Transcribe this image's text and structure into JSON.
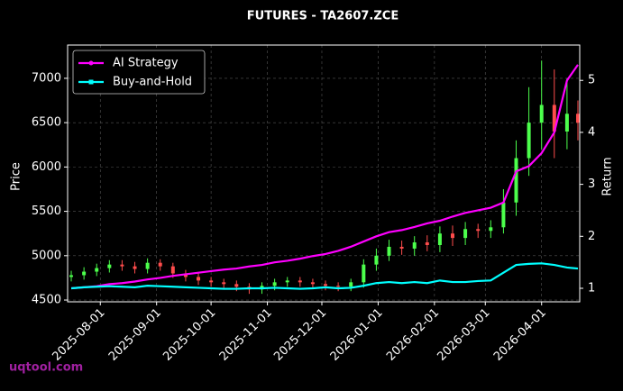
{
  "chart_data": {
    "type": "candlestick",
    "title": "FUTURES - TA2607.ZCE",
    "y_label": "Price",
    "y2_label": "Return",
    "watermark": "uqtool.com",
    "x": [
      "2025-07-16",
      "2025-07-23",
      "2025-07-30",
      "2025-08-06",
      "2025-08-13",
      "2025-08-20",
      "2025-08-27",
      "2025-09-03",
      "2025-09-10",
      "2025-09-17",
      "2025-09-24",
      "2025-10-01",
      "2025-10-08",
      "2025-10-15",
      "2025-10-22",
      "2025-10-29",
      "2025-11-05",
      "2025-11-12",
      "2025-11-19",
      "2025-11-26",
      "2025-12-03",
      "2025-12-10",
      "2025-12-17",
      "2025-12-24",
      "2025-12-31",
      "2026-01-07",
      "2026-01-14",
      "2026-01-21",
      "2026-01-28",
      "2026-02-04",
      "2026-02-11",
      "2026-02-18",
      "2026-02-25",
      "2026-03-04",
      "2026-03-11",
      "2026-03-18",
      "2026-03-25",
      "2026-04-01",
      "2026-04-08",
      "2026-04-15",
      "2026-04-21"
    ],
    "open": [
      4760,
      4780,
      4820,
      4860,
      4900,
      4880,
      4850,
      4920,
      4880,
      4800,
      4760,
      4720,
      4700,
      4680,
      4650,
      4620,
      4660,
      4700,
      4720,
      4700,
      4680,
      4660,
      4650,
      4700,
      4900,
      5000,
      5100,
      5080,
      5150,
      5120,
      5250,
      5200,
      5300,
      5280,
      5320,
      5600,
      6100,
      6500,
      6700,
      6400,
      6600
    ],
    "high": [
      4830,
      4870,
      4910,
      4950,
      4950,
      4930,
      4970,
      4960,
      4920,
      4840,
      4800,
      4760,
      4740,
      4720,
      4690,
      4700,
      4740,
      4760,
      4760,
      4740,
      4720,
      4700,
      4740,
      4960,
      5080,
      5180,
      5170,
      5220,
      5230,
      5330,
      5340,
      5380,
      5360,
      5400,
      5750,
      6300,
      6900,
      7200,
      7100,
      7000,
      6750
    ],
    "low": [
      4710,
      4730,
      4770,
      4810,
      4830,
      4800,
      4800,
      4830,
      4750,
      4710,
      4670,
      4650,
      4630,
      4600,
      4570,
      4570,
      4610,
      4650,
      4650,
      4630,
      4610,
      4600,
      4600,
      4640,
      4830,
      4940,
      5010,
      5000,
      5050,
      5040,
      5110,
      5120,
      5200,
      5200,
      5250,
      5450,
      5900,
      6200,
      6100,
      6200,
      6300
    ],
    "close": [
      4780,
      4820,
      4860,
      4900,
      4880,
      4850,
      4920,
      4880,
      4800,
      4760,
      4720,
      4700,
      4680,
      4650,
      4620,
      4660,
      4700,
      4720,
      4700,
      4680,
      4660,
      4650,
      4700,
      4900,
      5000,
      5100,
      5080,
      5150,
      5120,
      5250,
      5200,
      5300,
      5280,
      5320,
      5600,
      6100,
      6500,
      6700,
      6400,
      6600,
      6500
    ],
    "up_color": "#4cff4c",
    "down_color": "#ff4c4c",
    "series": [
      {
        "name": "AI Strategy",
        "color": "#ff00ff",
        "axis": "y2",
        "values": [
          1.0,
          1.02,
          1.04,
          1.08,
          1.1,
          1.13,
          1.17,
          1.2,
          1.24,
          1.27,
          1.3,
          1.33,
          1.36,
          1.38,
          1.42,
          1.45,
          1.5,
          1.53,
          1.57,
          1.62,
          1.66,
          1.72,
          1.8,
          1.9,
          2.0,
          2.08,
          2.12,
          2.18,
          2.25,
          2.3,
          2.38,
          2.45,
          2.5,
          2.55,
          2.65,
          3.25,
          3.35,
          3.6,
          4.0,
          5.0,
          5.3
        ]
      },
      {
        "name": "Buy-and-Hold",
        "color": "#00ffff",
        "axis": "y2",
        "values": [
          1.0,
          1.02,
          1.03,
          1.04,
          1.03,
          1.02,
          1.05,
          1.04,
          1.03,
          1.02,
          1.01,
          1.0,
          0.99,
          0.99,
          1.0,
          1.0,
          1.01,
          1.0,
          0.99,
          1.0,
          1.02,
          1.0,
          1.01,
          1.05,
          1.1,
          1.12,
          1.1,
          1.12,
          1.1,
          1.15,
          1.12,
          1.12,
          1.14,
          1.15,
          1.3,
          1.45,
          1.47,
          1.48,
          1.45,
          1.4,
          1.38
        ]
      }
    ],
    "xlim": [
      "2025-07-14",
      "2026-04-22"
    ],
    "xticks": [
      "2025-08-01",
      "2025-09-01",
      "2025-10-01",
      "2025-11-01",
      "2025-12-01",
      "2026-01-01",
      "2026-02-01",
      "2026-03-01",
      "2026-04-01"
    ],
    "ylim": [
      4480,
      7375
    ],
    "yticks": [
      4500,
      5000,
      5500,
      6000,
      6500,
      7000
    ],
    "y2lim": [
      0.74,
      5.68
    ],
    "y2ticks": [
      1,
      2,
      3,
      4,
      5
    ],
    "grid": true,
    "legend": "upper-left"
  }
}
